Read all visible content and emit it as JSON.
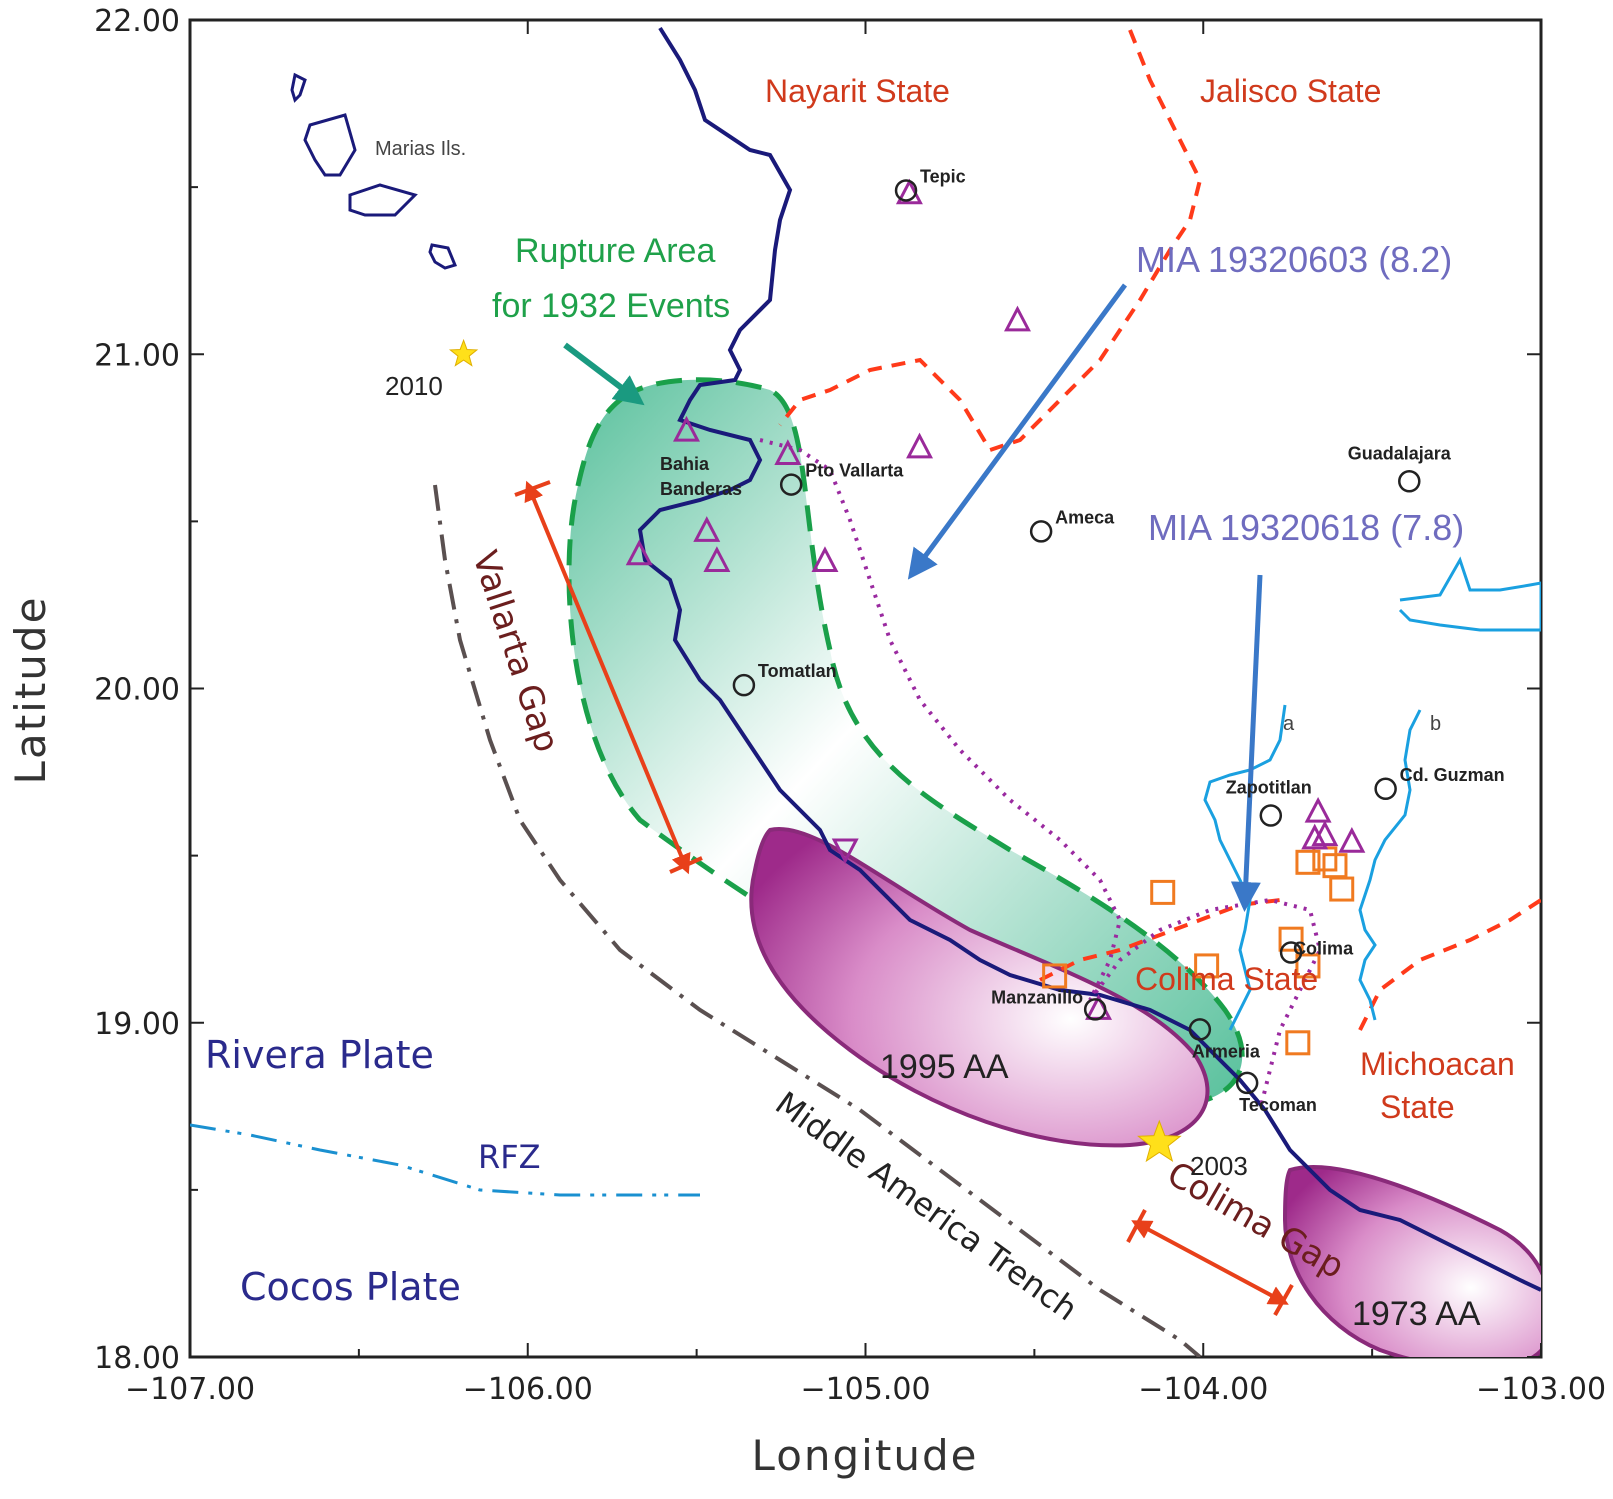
{
  "axes": {
    "xlabel": "Longitude",
    "ylabel": "Latitude",
    "xlim": [
      -107.0,
      -103.0
    ],
    "ylim": [
      18.0,
      22.0
    ],
    "xticks": [
      "−107.00",
      "−106.00",
      "−105.00",
      "−104.00",
      "−103.00"
    ],
    "yticks": [
      "18.00",
      "19.00",
      "20.00",
      "21.00",
      "22.00"
    ]
  },
  "labels": {
    "nayarit": "Nayarit State",
    "jalisco": "Jalisco State",
    "colima_state": "Colima State",
    "michoacan_1": "Michoacan",
    "michoacan_2": "State",
    "rivera": "Rivera Plate",
    "cocos": "Cocos Plate",
    "rfz": "RFZ",
    "trench": "Middle America Trench",
    "vallarta_gap": "Vallarta Gap",
    "colima_gap": "Colima Gap",
    "rupture_1": "Rupture  Area",
    "rupture_2": "for  1932 Events",
    "mia1": "MIA 19320603 (8.2)",
    "mia2": "MIA  19320618 (7.8)",
    "aa1995": "1995 AA",
    "aa1973": "1973 AA",
    "marias": "Marias Ils.",
    "bahia_1": "Bahia",
    "bahia_2": "Banderas",
    "river_a": "a",
    "river_b": "b",
    "year2010": "2010",
    "year2003": "2003"
  },
  "cities": [
    {
      "name": "Tepic",
      "lon": -104.88,
      "lat": 21.49
    },
    {
      "name": "Pto Vallarta",
      "lon": -105.22,
      "lat": 20.61
    },
    {
      "name": "Ameca",
      "lon": -104.48,
      "lat": 20.47
    },
    {
      "name": "Guadalajara",
      "lon": -103.39,
      "lat": 20.62
    },
    {
      "name": "Tomatlan",
      "lon": -105.36,
      "lat": 20.01
    },
    {
      "name": "Zapotitlan",
      "lon": -103.8,
      "lat": 19.62
    },
    {
      "name": "Cd. Guzman",
      "lon": -103.46,
      "lat": 19.7
    },
    {
      "name": "Colima",
      "lon": -103.74,
      "lat": 19.21
    },
    {
      "name": "Manzanillo",
      "lon": -104.32,
      "lat": 19.04
    },
    {
      "name": "Armeria",
      "lon": -104.01,
      "lat": 18.98
    },
    {
      "name": "Tecoman",
      "lon": -103.87,
      "lat": 18.82
    }
  ],
  "stations_up": [
    {
      "lon": -104.87,
      "lat": 21.48
    },
    {
      "lon": -104.55,
      "lat": 21.1
    },
    {
      "lon": -105.53,
      "lat": 20.77
    },
    {
      "lon": -105.23,
      "lat": 20.7
    },
    {
      "lon": -104.84,
      "lat": 20.72
    },
    {
      "lon": -105.47,
      "lat": 20.47
    },
    {
      "lon": -105.44,
      "lat": 20.38
    },
    {
      "lon": -105.12,
      "lat": 20.38
    },
    {
      "lon": -105.67,
      "lat": 20.4
    },
    {
      "lon": -103.66,
      "lat": 19.63
    },
    {
      "lon": -103.67,
      "lat": 19.55
    },
    {
      "lon": -103.56,
      "lat": 19.54
    },
    {
      "lon": -103.64,
      "lat": 19.56
    },
    {
      "lon": -104.31,
      "lat": 19.04
    }
  ],
  "stations_down": [
    {
      "lon": -105.06,
      "lat": 19.52
    }
  ],
  "squares": [
    {
      "lon": -104.12,
      "lat": 19.39
    },
    {
      "lon": -103.99,
      "lat": 19.17
    },
    {
      "lon": -104.44,
      "lat": 19.14
    },
    {
      "lon": -103.74,
      "lat": 19.25
    },
    {
      "lon": -103.69,
      "lat": 19.17
    },
    {
      "lon": -103.72,
      "lat": 18.94
    },
    {
      "lon": -103.69,
      "lat": 19.48
    },
    {
      "lon": -103.64,
      "lat": 19.49
    },
    {
      "lon": -103.61,
      "lat": 19.47
    },
    {
      "lon": -103.59,
      "lat": 19.4
    }
  ],
  "stars": [
    {
      "lon": -106.19,
      "lat": 21.0,
      "big": false
    },
    {
      "lon": -104.13,
      "lat": 18.64,
      "big": true
    }
  ],
  "colors": {
    "coast": "#1a1a7a",
    "border": "#ff3a1a",
    "rupture_fill": "#3ab58a",
    "rupture_edge": "#1aa04a",
    "aa_fill": "#9e2a8a",
    "aa_edge": "#8a2a7a",
    "dotted": "#9a2aa0",
    "arrow": "#3a78c8",
    "gap_arrow": "#e8401a",
    "river": "#1aa0e0",
    "trench": "#5a5050",
    "rfz": "#1a90d0",
    "triangle": "#9a2a9a",
    "square": "#f07a20",
    "star": "#ffe01a"
  }
}
